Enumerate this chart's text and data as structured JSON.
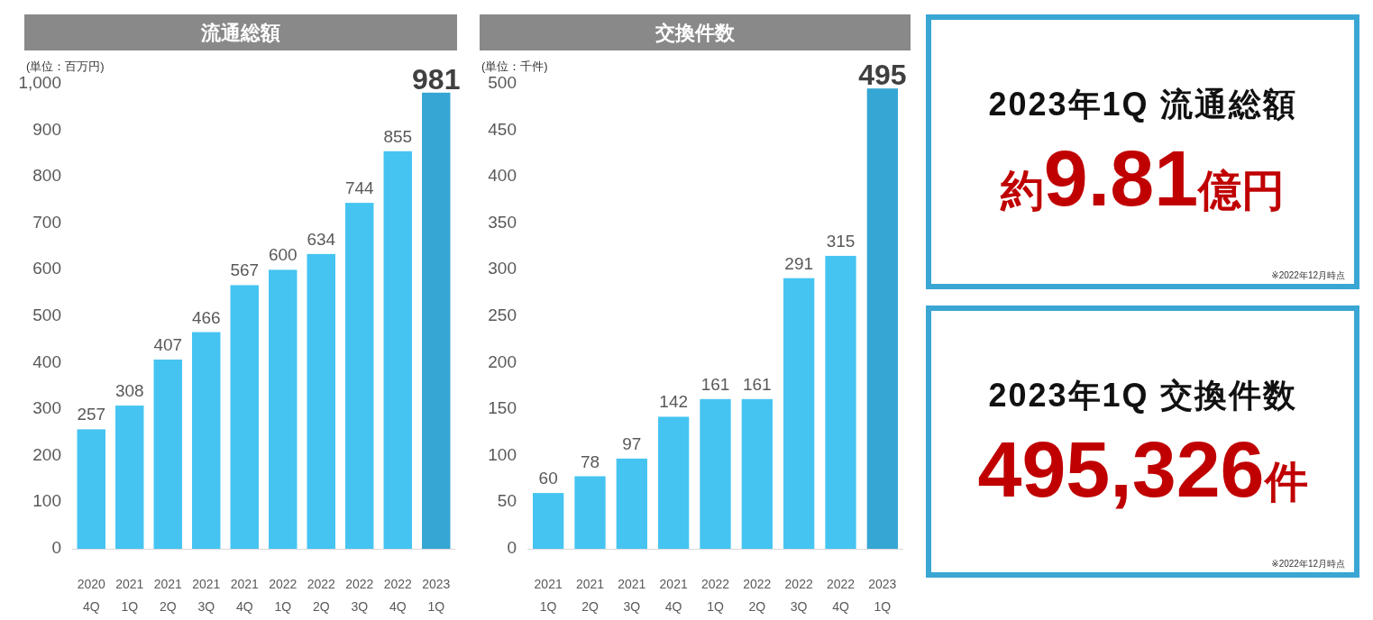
{
  "chart_data": [
    {
      "type": "bar",
      "title": "流通総額",
      "ylabel": "(単位：百万円)",
      "categories": [
        "2020\n4Q",
        "2021\n1Q",
        "2021\n2Q",
        "2021\n3Q",
        "2021\n4Q",
        "2022\n1Q",
        "2022\n2Q",
        "2022\n3Q",
        "2022\n4Q",
        "2023\n1Q"
      ],
      "values": [
        257,
        308,
        407,
        466,
        567,
        600,
        634,
        744,
        855,
        981
      ],
      "colors": [
        "#45c4f2",
        "#45c4f2",
        "#45c4f2",
        "#45c4f2",
        "#45c4f2",
        "#45c4f2",
        "#45c4f2",
        "#45c4f2",
        "#45c4f2",
        "#36a6d4"
      ],
      "ylim": [
        0,
        1000
      ],
      "yticks": [
        0,
        100,
        200,
        300,
        400,
        500,
        600,
        700,
        800,
        900,
        {
          "value": 1000,
          "label": "1,000"
        }
      ],
      "data_labels": true
    },
    {
      "type": "bar",
      "title": "交換件数",
      "ylabel": "(単位：千件)",
      "categories": [
        "2021\n1Q",
        "2021\n2Q",
        "2021\n3Q",
        "2021\n4Q",
        "2022\n1Q",
        "2022\n2Q",
        "2022\n3Q",
        "2022\n4Q",
        "2023\n1Q"
      ],
      "values": [
        60,
        78,
        97,
        142,
        161,
        161,
        291,
        315,
        495
      ],
      "colors": [
        "#45c4f2",
        "#45c4f2",
        "#45c4f2",
        "#45c4f2",
        "#45c4f2",
        "#45c4f2",
        "#45c4f2",
        "#45c4f2",
        "#36a6d4"
      ],
      "ylim": [
        0,
        500
      ],
      "yticks": [
        0,
        50,
        100,
        150,
        200,
        250,
        300,
        350,
        400,
        450,
        500
      ],
      "data_labels": true
    },
    {
      "type": "other",
      "title": "2023年1Q 流通総額",
      "color": "#c00000",
      "annotations": [
        "約9.81億円",
        "※2022年12月時点"
      ]
    },
    {
      "type": "other",
      "title": "2023年1Q 交換件数",
      "color": "#c00000",
      "annotations": [
        "495,326件",
        "※2022年12月時点"
      ]
    }
  ]
}
